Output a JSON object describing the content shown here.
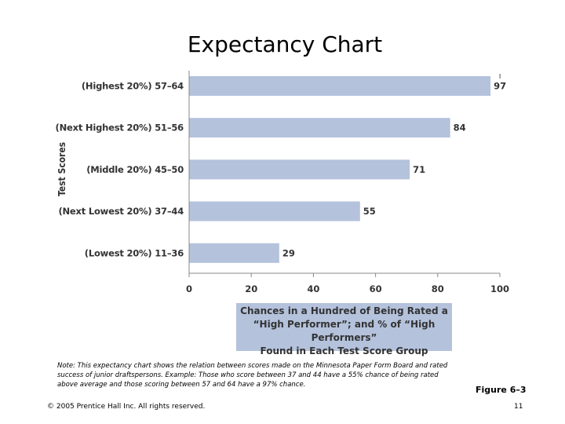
{
  "slide": {
    "title": "Expectancy Chart",
    "note": "Note: This expectancy chart shows the relation between scores made on the Minnesota Paper Form Board and rated success of junior draftspersons. Example: Those who score between 37 and 44 have a 55% chance of being rated above average and those scoring between 57 and 64 have a 97% chance.",
    "figure_ref": "Figure 6–3",
    "copyright": "© 2005 Prentice Hall Inc. All rights reserved.",
    "page_number": "11"
  },
  "chart_data": {
    "type": "bar",
    "orientation": "horizontal",
    "categories": [
      "(Highest 20%) 57–64",
      "(Next Highest 20%) 51–56",
      "(Middle 20%) 45–50",
      "(Next Lowest 20%) 37–44",
      "(Lowest 20%) 11–36"
    ],
    "values": [
      97,
      84,
      71,
      55,
      29
    ],
    "ylabel": "Test Scores",
    "xlabel_lines": [
      "Chances in a Hundred of Being Rated a",
      "“High Performer”; and % of “High Performers”",
      "Found in Each Test Score Group"
    ],
    "xlim": [
      0,
      100
    ],
    "xticks": [
      0,
      20,
      40,
      60,
      80,
      100
    ],
    "bar_color": "#b4c2dc",
    "grid": false
  }
}
